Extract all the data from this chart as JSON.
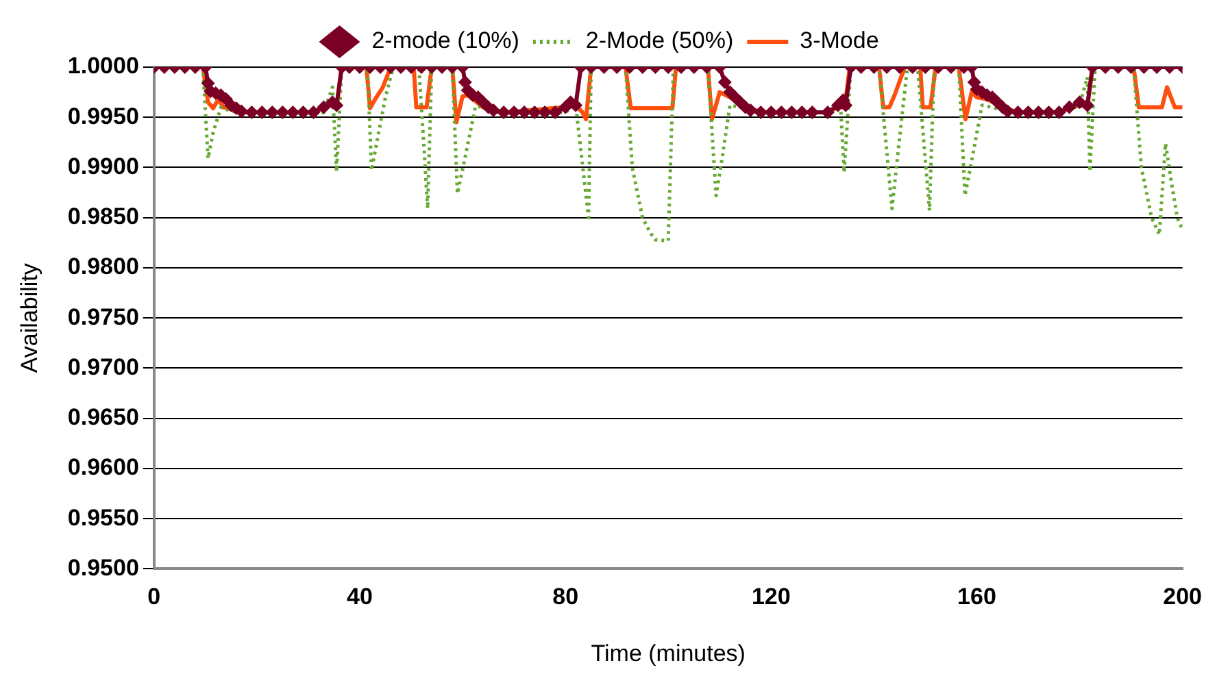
{
  "chart_data": {
    "type": "line",
    "xlabel": "Time (minutes)",
    "ylabel": "Availability",
    "xlim": [
      0,
      200
    ],
    "xticks": [
      0,
      40,
      80,
      120,
      160,
      200
    ],
    "ylim": [
      0.95,
      1
    ],
    "yticks": [
      {
        "value": 1,
        "label": "1.0000"
      },
      {
        "value": 0.995,
        "label": "0.9950"
      },
      {
        "value": 0.99,
        "label": "0.9900"
      },
      {
        "value": 0.985,
        "label": "0.9850"
      },
      {
        "value": 0.98,
        "label": "0.9800"
      },
      {
        "value": 0.975,
        "label": "0.9750"
      },
      {
        "value": 0.97,
        "label": "0.9700"
      },
      {
        "value": 0.965,
        "label": "0.9650"
      },
      {
        "value": 0.96,
        "label": "0.9600"
      },
      {
        "value": 0.955,
        "label": "0.9550"
      },
      {
        "value": 0.95,
        "label": "0.9500"
      }
    ],
    "grid": "y",
    "legend": "top",
    "series": [
      {
        "name": "2-mode (10%)",
        "color": "#7b0025",
        "marker": "diamond",
        "line_style": "solid",
        "x": [
          0,
          2,
          4,
          6,
          8,
          10,
          10.5,
          11,
          12,
          13,
          14,
          15,
          16,
          17,
          19,
          21,
          23,
          25,
          27,
          29,
          31,
          33,
          34.7,
          35.5,
          36.5,
          38,
          40,
          42,
          44,
          46,
          48,
          50,
          52,
          54,
          56,
          58,
          60,
          60.5,
          61,
          62,
          63,
          64,
          65,
          66,
          68,
          70,
          72,
          74,
          76,
          78,
          80,
          81,
          82,
          83,
          85,
          87.5,
          90,
          92.5,
          95,
          97.5,
          100,
          102.5,
          105,
          107.5,
          110,
          111,
          112,
          113,
          114,
          115,
          116,
          118,
          120,
          122,
          124,
          126,
          128,
          131,
          133,
          134,
          134.5,
          135.5,
          137.5,
          140,
          142.5,
          145,
          147.5,
          150,
          152.5,
          155,
          157.5,
          159,
          159.5,
          160,
          161,
          162,
          163,
          164,
          165,
          166,
          168,
          170,
          172,
          174,
          176,
          178,
          180,
          181.5,
          182.5,
          185,
          187.5,
          190,
          192.5,
          195,
          197.5,
          200
        ],
        "values": [
          1,
          1,
          1,
          1,
          1,
          1,
          0.9984,
          0.9976,
          0.9974,
          0.9972,
          0.9968,
          0.9962,
          0.9959,
          0.9956,
          0.9955,
          0.9955,
          0.9955,
          0.9955,
          0.9955,
          0.9955,
          0.9955,
          0.996,
          0.9965,
          0.9962,
          1,
          1,
          1,
          1,
          1,
          1,
          1,
          1,
          1,
          1,
          1,
          1,
          1,
          0.9985,
          0.9977,
          0.9972,
          0.997,
          0.9965,
          0.996,
          0.9957,
          0.9955,
          0.9955,
          0.9955,
          0.9955,
          0.9955,
          0.9955,
          0.996,
          0.9965,
          0.9962,
          1,
          1,
          1,
          1,
          1,
          1,
          1,
          1,
          1,
          1,
          1,
          1,
          0.9985,
          0.9975,
          0.997,
          0.9965,
          0.996,
          0.9957,
          0.9955,
          0.9955,
          0.9955,
          0.9955,
          0.9955,
          0.9955,
          0.9955,
          0.9962,
          0.9967,
          0.9962,
          1,
          1,
          1,
          1,
          1,
          1,
          1,
          1,
          1,
          1,
          1,
          0.9985,
          0.9978,
          0.9975,
          0.9972,
          0.997,
          0.9965,
          0.996,
          0.9956,
          0.9955,
          0.9955,
          0.9955,
          0.9955,
          0.9955,
          0.996,
          0.9965,
          0.9962,
          1,
          1,
          1,
          1,
          1,
          1,
          1,
          1
        ]
      },
      {
        "name": "2-Mode (50%)",
        "color": "#66a832",
        "marker": "none",
        "line_style": "dotted",
        "x": [
          0,
          9.5,
          10.5,
          11.5,
          13,
          14,
          16,
          33,
          34.7,
          35.5,
          36.5,
          41.5,
          42.3,
          43.5,
          45,
          46.5,
          51.5,
          52.5,
          53.2,
          54,
          58,
          59,
          60.5,
          62.5,
          64,
          66,
          80,
          82,
          84.5,
          85,
          91.7,
          93,
          95,
          96.5,
          97.5,
          100,
          101,
          107.7,
          109.3,
          110.5,
          112,
          114,
          118,
          131,
          133.5,
          134.2,
          135.5,
          141,
          143.5,
          145,
          146.5,
          148.5,
          150.8,
          151.7,
          156.5,
          157.7,
          159.5,
          161,
          163,
          166,
          176,
          180,
          181.5,
          182,
          183,
          190.5,
          192,
          194,
          195.5,
          196.7,
          198,
          199,
          200
        ],
        "values": [
          1,
          1,
          0.9909,
          0.9935,
          0.996,
          0.9958,
          0.9955,
          0.9955,
          0.998,
          0.9896,
          1,
          1,
          0.9897,
          0.993,
          0.997,
          1,
          1,
          0.992,
          0.9859,
          1,
          1,
          0.9874,
          0.991,
          0.9961,
          0.996,
          0.9956,
          0.9955,
          0.9962,
          0.985,
          1,
          1,
          0.99,
          0.985,
          0.9835,
          0.9828,
          0.9827,
          1,
          1,
          0.9872,
          0.991,
          0.9962,
          0.996,
          0.9955,
          0.9955,
          0.9962,
          0.9895,
          1,
          1,
          0.9859,
          0.993,
          1,
          1,
          0.9857,
          1,
          1,
          0.9872,
          0.992,
          0.9962,
          0.996,
          0.9955,
          0.9955,
          0.9962,
          0.999,
          0.9896,
          1,
          1,
          0.99,
          0.985,
          0.9833,
          0.9924,
          0.988,
          0.985,
          0.9838
        ]
      },
      {
        "name": "3-Mode",
        "color": "#ff4f0f",
        "marker": "none",
        "line_style": "solid",
        "x": [
          0,
          9.5,
          10.5,
          11.5,
          12.5,
          13.5,
          15,
          17,
          31,
          34.5,
          35.5,
          36.5,
          41.3,
          42,
          43,
          44.5,
          46,
          50.5,
          51,
          53,
          54,
          58,
          58.8,
          60,
          61,
          62,
          64,
          66,
          68,
          80,
          82,
          83.3,
          84,
          85,
          91.7,
          92.7,
          100.8,
          101.5,
          107.7,
          108.5,
          110,
          112,
          114,
          118,
          131,
          133,
          134.3,
          135.3,
          141,
          141.8,
          143,
          144,
          146,
          149,
          149.5,
          151,
          152,
          156.5,
          157.8,
          159,
          160,
          162,
          165,
          168,
          176,
          180,
          181.5,
          182.5,
          190.5,
          191.5,
          196,
          197,
          198.5,
          200
        ],
        "values": [
          1,
          1,
          0.9965,
          0.9959,
          0.9968,
          0.996,
          0.9958,
          0.9955,
          0.9955,
          0.9962,
          0.996,
          1,
          1,
          0.9959,
          0.9968,
          0.998,
          1,
          1,
          0.996,
          0.996,
          1,
          1,
          0.9945,
          0.9971,
          0.9972,
          0.9968,
          0.996,
          0.9956,
          0.9955,
          0.996,
          0.9962,
          0.9955,
          0.9948,
          1,
          1,
          0.9959,
          0.9959,
          1,
          1,
          0.9948,
          0.9975,
          0.997,
          0.9963,
          0.9955,
          0.9955,
          0.996,
          0.996,
          1,
          1,
          0.996,
          0.996,
          0.9972,
          1,
          1,
          0.996,
          0.996,
          1,
          1,
          0.9948,
          0.9975,
          0.997,
          0.9968,
          0.996,
          0.9955,
          0.9955,
          0.9962,
          0.996,
          1,
          1,
          0.996,
          0.996,
          0.998,
          0.996,
          0.996
        ]
      }
    ]
  }
}
